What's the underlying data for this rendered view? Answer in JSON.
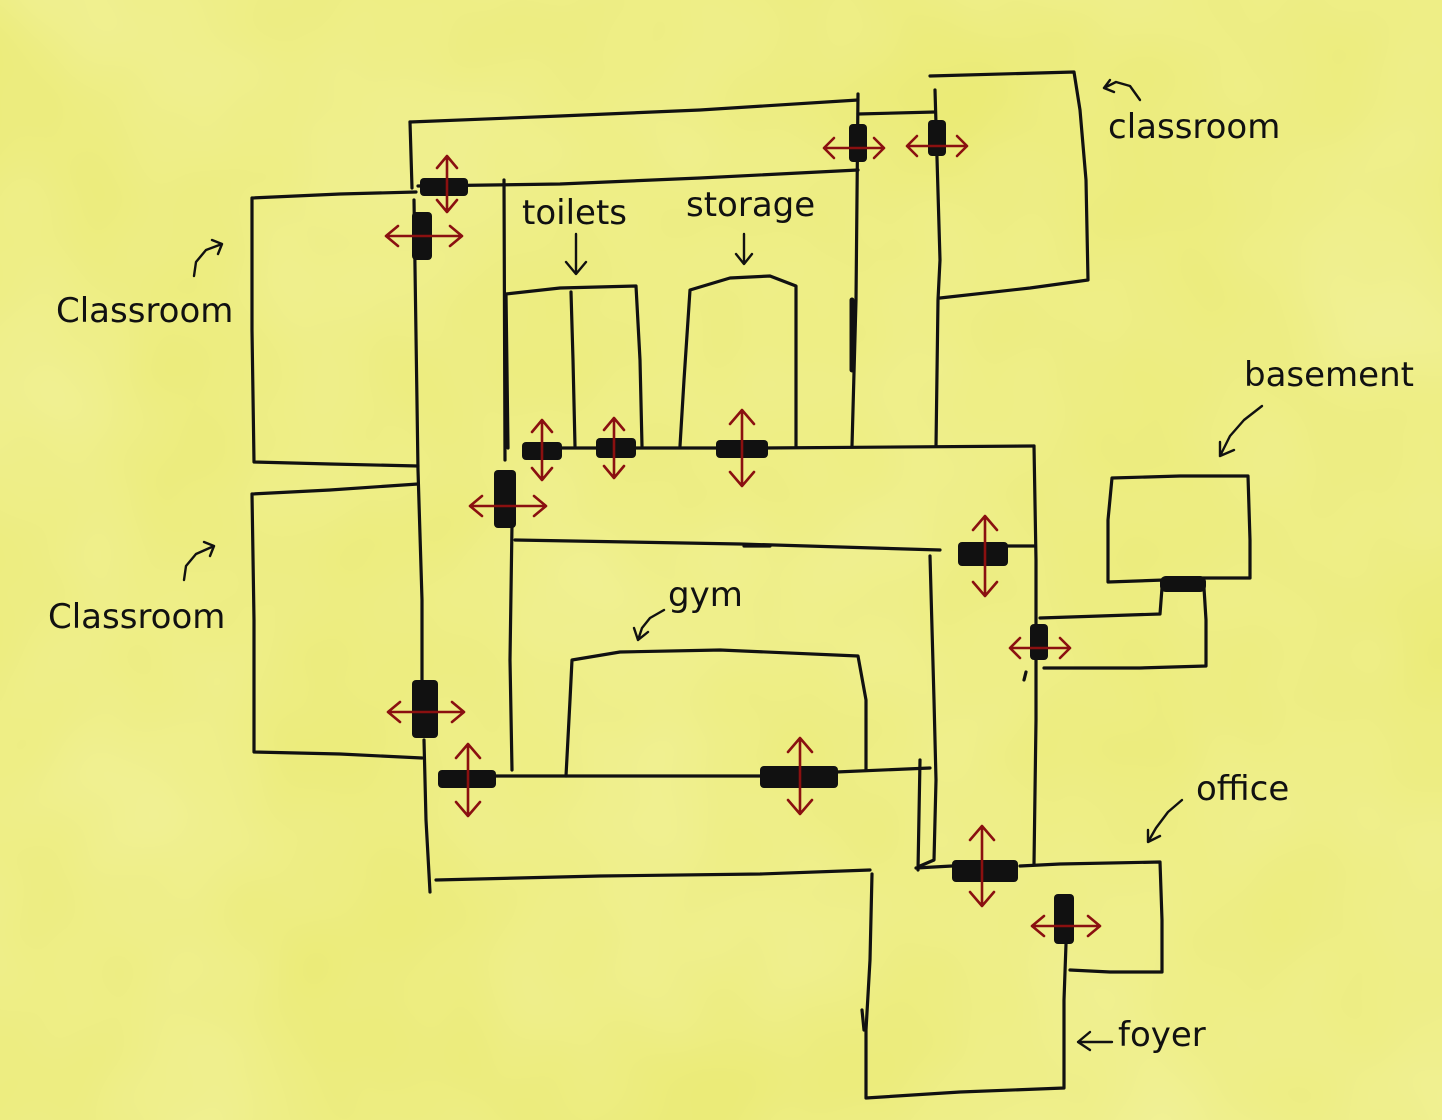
{
  "labels": {
    "classroom_top_right": "classroom",
    "classroom_left_upper": "Classroom",
    "classroom_left_lower": "Classroom",
    "toilets": "toilets",
    "storage": "storage",
    "basement": "basement",
    "gym": "gym",
    "office": "office",
    "foyer": "foyer"
  },
  "colors": {
    "background": "#eaea72",
    "walls": "#111111",
    "door_arrows": "#8a1010"
  }
}
